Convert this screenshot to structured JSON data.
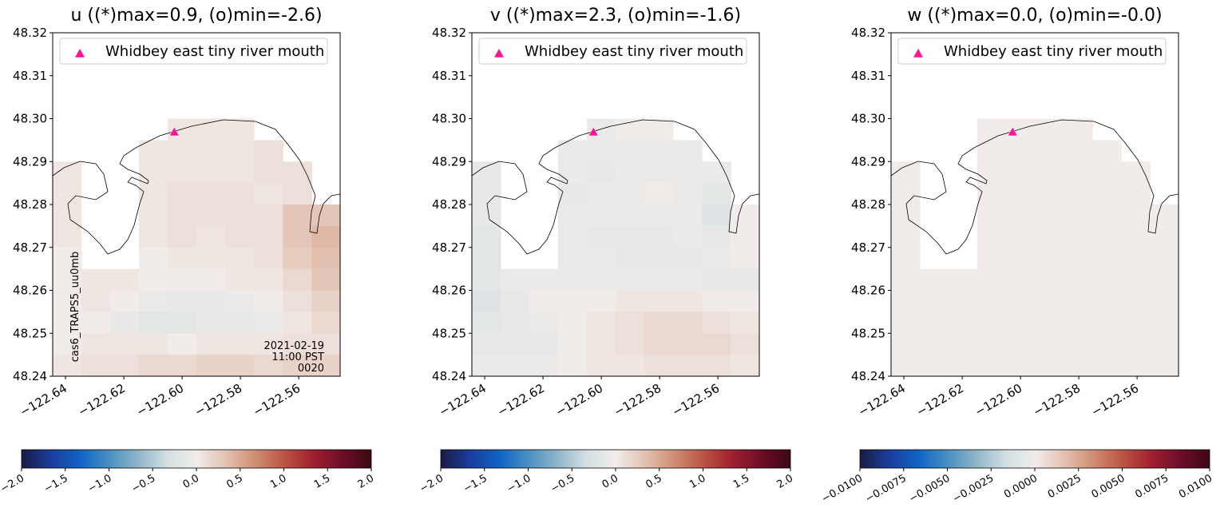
{
  "chart_data": [
    {
      "type": "heatmap",
      "title": "u ((*)max=0.9, (o)min=-2.6)",
      "x": [
        -122.6395,
        -122.6296,
        -122.6197,
        -122.6099,
        -122.6,
        -122.5901,
        -122.5803,
        -122.5704,
        -122.5605,
        -122.5507
      ],
      "y": [
        48.2975,
        48.2925,
        48.2875,
        48.2825,
        48.2775,
        48.2725,
        48.2675,
        48.2625,
        48.2575,
        48.2525,
        48.2475,
        48.2425
      ],
      "values": [
        [
          null,
          null,
          null,
          null,
          0.05,
          0.05,
          0.05,
          null,
          null,
          null
        ],
        [
          null,
          null,
          null,
          0.05,
          0.05,
          0.05,
          0.05,
          0.1,
          null,
          null
        ],
        [
          0.05,
          null,
          null,
          0.05,
          0.05,
          0.05,
          0.05,
          0.1,
          0.1,
          null
        ],
        [
          0.05,
          null,
          null,
          0.05,
          0.1,
          0.1,
          0.1,
          0.05,
          0.1,
          null
        ],
        [
          0.05,
          null,
          null,
          0.05,
          0.1,
          0.1,
          0.1,
          0.1,
          0.3,
          0.3
        ],
        [
          0.05,
          null,
          null,
          0.05,
          0.1,
          0.05,
          0.1,
          0.1,
          0.3,
          0.4
        ],
        [
          0,
          null,
          null,
          0,
          0.05,
          0.05,
          0.05,
          0.1,
          0.25,
          0.35
        ],
        [
          0,
          0.05,
          0.05,
          0,
          0,
          0,
          0.05,
          0.05,
          0.15,
          0.3
        ],
        [
          0,
          0.05,
          0,
          -0.05,
          -0.1,
          -0.1,
          -0.05,
          0,
          0.1,
          0.2
        ],
        [
          0,
          0,
          -0.1,
          -0.15,
          -0.15,
          -0.1,
          -0.1,
          -0.05,
          0.05,
          0.15
        ],
        [
          0,
          0.05,
          0.05,
          0.05,
          0,
          0.05,
          0.05,
          0.05,
          0.1,
          0.1
        ],
        [
          0.05,
          0.1,
          0.1,
          0.15,
          0.15,
          0.2,
          0.2,
          0.15,
          0.2,
          0.2
        ]
      ],
      "xlim": [
        -122.6444,
        -122.5458
      ],
      "ylim": [
        48.24,
        48.32
      ],
      "xticks": [
        {
          "value": -122.64,
          "label": "−122.64"
        },
        {
          "value": -122.62,
          "label": "−122.62"
        },
        {
          "value": -122.6,
          "label": "−122.60"
        },
        {
          "value": -122.58,
          "label": "−122.58"
        },
        {
          "value": -122.56,
          "label": "−122.56"
        }
      ],
      "yticks": [
        48.24,
        48.25,
        48.26,
        48.27,
        48.28,
        48.29,
        {
          "value": 48.3,
          "label": "48.30"
        },
        48.31,
        48.32
      ],
      "clim": [
        -2,
        2
      ],
      "cticks": [
        {
          "value": -2,
          "label": "−2.0"
        },
        {
          "value": -1.5,
          "label": "−1.5"
        },
        {
          "value": -1,
          "label": "−1.0"
        },
        {
          "value": -0.5,
          "label": "−0.5"
        },
        {
          "value": 0,
          "label": "0.0"
        },
        0.5,
        {
          "value": 1,
          "label": "1.0"
        },
        1.5,
        {
          "value": 2,
          "label": "2.0"
        }
      ],
      "colormap": [
        "#181c43",
        "#1b3d9c",
        "#0f63c4",
        "#4a8fc0",
        "#8fb5c9",
        "#d2dfe3",
        "#f1ecea",
        "#e3c2b2",
        "#d08e74",
        "#bb5544",
        "#a0202f",
        "#6d0d29",
        "#3c0912"
      ],
      "marker": {
        "name": "Whidbey east tiny river mouth",
        "x": -122.6027,
        "y": 48.2969,
        "color": "#ff1493"
      },
      "legend": "upper center",
      "run_label": "cas6_TRAPS5_uu0mb",
      "time_label": [
        "2021-02-19",
        "11:00 PST",
        "0020"
      ]
    },
    {
      "type": "heatmap",
      "title": "v ((*)max=2.3, (o)min=-1.6)",
      "x": [
        -122.6395,
        -122.6296,
        -122.6197,
        -122.6099,
        -122.6,
        -122.5901,
        -122.5803,
        -122.5704,
        -122.5605,
        -122.5507
      ],
      "y": [
        48.2975,
        48.2925,
        48.2875,
        48.2825,
        48.2775,
        48.2725,
        48.2675,
        48.2625,
        48.2575,
        48.2525,
        48.2475,
        48.2425
      ],
      "values": [
        [
          null,
          null,
          null,
          null,
          -0.05,
          0,
          0,
          null,
          null,
          null
        ],
        [
          null,
          null,
          null,
          -0.05,
          -0.05,
          -0.05,
          -0.05,
          -0.05,
          null,
          null
        ],
        [
          -0.1,
          null,
          null,
          -0.05,
          -0.1,
          -0.05,
          -0.05,
          -0.05,
          -0.05,
          null
        ],
        [
          -0.1,
          null,
          null,
          -0.1,
          -0.05,
          -0.05,
          0,
          -0.05,
          -0.15,
          null
        ],
        [
          -0.1,
          null,
          null,
          -0.05,
          -0.05,
          -0.05,
          -0.05,
          -0.05,
          -0.2,
          0
        ],
        [
          -0.15,
          null,
          null,
          -0.05,
          -0.1,
          -0.1,
          -0.1,
          -0.05,
          -0.1,
          0
        ],
        [
          -0.15,
          null,
          null,
          -0.05,
          -0.05,
          -0.1,
          -0.1,
          -0.1,
          -0.05,
          0
        ],
        [
          -0.15,
          -0.05,
          -0.05,
          -0.05,
          -0.05,
          -0.05,
          -0.05,
          -0.05,
          -0.1,
          -0.1
        ],
        [
          -0.2,
          -0.1,
          0,
          0,
          0,
          0.05,
          0.05,
          0.05,
          0,
          0
        ],
        [
          -0.15,
          -0.1,
          -0.05,
          0,
          0.05,
          0.1,
          0.15,
          0.15,
          0.1,
          0.05
        ],
        [
          -0.1,
          -0.1,
          -0.1,
          0,
          0.05,
          0.1,
          0.15,
          0.15,
          0.15,
          0.1
        ],
        [
          -0.05,
          -0.05,
          -0.05,
          0,
          0.05,
          0.05,
          0.1,
          0.1,
          0.1,
          0.05
        ]
      ],
      "xlim": [
        -122.6444,
        -122.5458
      ],
      "ylim": [
        48.24,
        48.32
      ],
      "xticks": [
        {
          "value": -122.64,
          "label": "−122.64"
        },
        {
          "value": -122.62,
          "label": "−122.62"
        },
        {
          "value": -122.6,
          "label": "−122.60"
        },
        {
          "value": -122.58,
          "label": "−122.58"
        },
        {
          "value": -122.56,
          "label": "−122.56"
        }
      ],
      "yticks": [
        48.24,
        48.25,
        48.26,
        48.27,
        48.28,
        48.29,
        {
          "value": 48.3,
          "label": "48.30"
        },
        48.31,
        48.32
      ],
      "clim": [
        -2,
        2
      ],
      "cticks": [
        {
          "value": -2,
          "label": "−2.0"
        },
        {
          "value": -1.5,
          "label": "−1.5"
        },
        {
          "value": -1,
          "label": "−1.0"
        },
        {
          "value": -0.5,
          "label": "−0.5"
        },
        {
          "value": 0,
          "label": "0.0"
        },
        0.5,
        {
          "value": 1,
          "label": "1.0"
        },
        1.5,
        {
          "value": 2,
          "label": "2.0"
        }
      ],
      "colormap": [
        "#181c43",
        "#1b3d9c",
        "#0f63c4",
        "#4a8fc0",
        "#8fb5c9",
        "#d2dfe3",
        "#f1ecea",
        "#e3c2b2",
        "#d08e74",
        "#bb5544",
        "#a0202f",
        "#6d0d29",
        "#3c0912"
      ],
      "marker": {
        "name": "Whidbey east tiny river mouth",
        "x": -122.6027,
        "y": 48.2969,
        "color": "#ff1493"
      },
      "legend": "upper center"
    },
    {
      "type": "heatmap",
      "title": "w ((*)max=0.0, (o)min=-0.0)",
      "x": [
        -122.6395,
        -122.6296,
        -122.6197,
        -122.6099,
        -122.6,
        -122.5901,
        -122.5803,
        -122.5704,
        -122.5605,
        -122.5507
      ],
      "y": [
        48.2975,
        48.2925,
        48.2875,
        48.2825,
        48.2775,
        48.2725,
        48.2675,
        48.2625,
        48.2575,
        48.2525,
        48.2475,
        48.2425
      ],
      "values": [
        [
          null,
          null,
          null,
          0,
          0,
          0,
          0,
          null,
          null,
          null
        ],
        [
          null,
          null,
          null,
          0,
          0,
          0,
          0,
          0,
          null,
          null
        ],
        [
          0,
          null,
          null,
          0,
          0,
          0,
          0,
          0,
          0,
          null
        ],
        [
          0,
          null,
          null,
          0,
          0,
          0,
          0,
          0,
          0,
          null
        ],
        [
          0,
          null,
          null,
          0,
          0,
          0,
          0,
          0,
          0,
          0
        ],
        [
          0,
          null,
          null,
          0,
          0,
          0,
          0,
          0,
          0,
          0
        ],
        [
          0,
          null,
          null,
          0,
          0,
          0,
          0,
          0,
          0,
          0
        ],
        [
          0,
          0,
          0,
          0,
          0,
          0,
          0,
          0,
          0,
          0
        ],
        [
          0,
          0,
          0,
          0,
          0,
          0,
          0,
          0,
          0,
          0
        ],
        [
          0,
          0,
          0,
          0,
          0,
          0,
          0,
          0,
          0,
          0
        ],
        [
          0,
          0,
          0,
          0,
          0,
          0,
          0,
          0,
          0,
          0
        ],
        [
          0,
          0,
          0,
          0,
          0,
          0,
          0,
          0,
          0,
          0
        ]
      ],
      "xlim": [
        -122.6444,
        -122.5458
      ],
      "ylim": [
        48.24,
        48.32
      ],
      "xticks": [
        {
          "value": -122.64,
          "label": "−122.64"
        },
        {
          "value": -122.62,
          "label": "−122.62"
        },
        {
          "value": -122.6,
          "label": "−122.60"
        },
        {
          "value": -122.58,
          "label": "−122.58"
        },
        {
          "value": -122.56,
          "label": "−122.56"
        }
      ],
      "yticks": [
        48.24,
        48.25,
        48.26,
        48.27,
        48.28,
        48.29,
        {
          "value": 48.3,
          "label": "48.30"
        },
        48.31,
        48.32
      ],
      "clim": [
        -0.01,
        0.01
      ],
      "cticks": [
        {
          "value": -0.01,
          "label": "−0.0100"
        },
        {
          "value": -0.0075,
          "label": "−0.0075"
        },
        {
          "value": -0.005,
          "label": "−0.0050"
        },
        {
          "value": -0.0025,
          "label": "−0.0025"
        },
        {
          "value": 0,
          "label": "0.0000"
        },
        {
          "value": 0.0025,
          "label": "0.0025"
        },
        {
          "value": 0.005,
          "label": "0.0050"
        },
        {
          "value": 0.0075,
          "label": "0.0075"
        },
        {
          "value": 0.01,
          "label": "0.0100"
        }
      ],
      "colormap": [
        "#181c43",
        "#1b3d9c",
        "#0f63c4",
        "#4a8fc0",
        "#8fb5c9",
        "#d2dfe3",
        "#f1ecea",
        "#e3c2b2",
        "#d08e74",
        "#bb5544",
        "#a0202f",
        "#6d0d29",
        "#3c0912"
      ],
      "marker": {
        "name": "Whidbey east tiny river mouth",
        "x": -122.6027,
        "y": 48.2969,
        "color": "#ff1493"
      },
      "legend": "upper center"
    }
  ]
}
